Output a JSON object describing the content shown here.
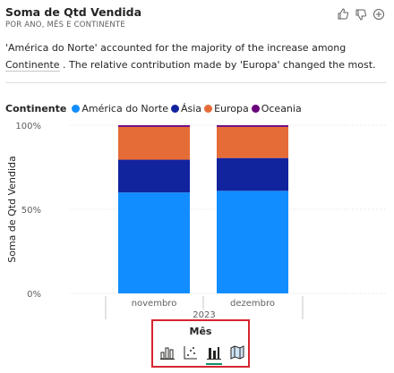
{
  "header": {
    "title": "Soma de Qtd Vendida",
    "subtitle": "POR ANO, MÊS E CONTINENTE",
    "actions": [
      {
        "icon": "thumbs-up-icon"
      },
      {
        "icon": "thumbs-down-icon"
      },
      {
        "icon": "add-icon"
      }
    ]
  },
  "narrative": {
    "part1": "'América do Norte' accounted for the majority of the increase among ",
    "highlight": "Continente",
    "part2": " . The relative contribution made by 'Europa' changed the most."
  },
  "legend": {
    "title": "Continente",
    "items": [
      {
        "label": "América do Norte",
        "color": "#118DFF"
      },
      {
        "label": "Ásia",
        "color": "#12239E"
      },
      {
        "label": "Europa",
        "color": "#E66C37"
      },
      {
        "label": "Oceania",
        "color": "#6B007B"
      }
    ]
  },
  "chart_data": {
    "type": "bar",
    "stacked": "100%",
    "categories": [
      "novembro",
      "dezembro"
    ],
    "x_group_label": "2023",
    "series": [
      {
        "name": "América do Norte",
        "color": "#118DFF",
        "values": [
          60,
          61
        ]
      },
      {
        "name": "Ásia",
        "color": "#12239E",
        "values": [
          19.5,
          19.5
        ]
      },
      {
        "name": "Europa",
        "color": "#E66C37",
        "values": [
          19.5,
          18.5
        ]
      },
      {
        "name": "Oceania",
        "color": "#6B007B",
        "values": [
          1,
          1
        ]
      }
    ],
    "ylabel": "Soma de Qtd Vendida",
    "ylim": [
      0,
      100
    ],
    "yticks": [
      "0%",
      "50%",
      "100%"
    ],
    "grid": true
  },
  "toolbar": {
    "label": "Mês",
    "icons": [
      {
        "icon": "bar-chart-icon",
        "active": false
      },
      {
        "icon": "scatter-chart-icon",
        "active": false
      },
      {
        "icon": "column-chart-icon",
        "active": true
      },
      {
        "icon": "map-icon",
        "active": false
      }
    ]
  }
}
